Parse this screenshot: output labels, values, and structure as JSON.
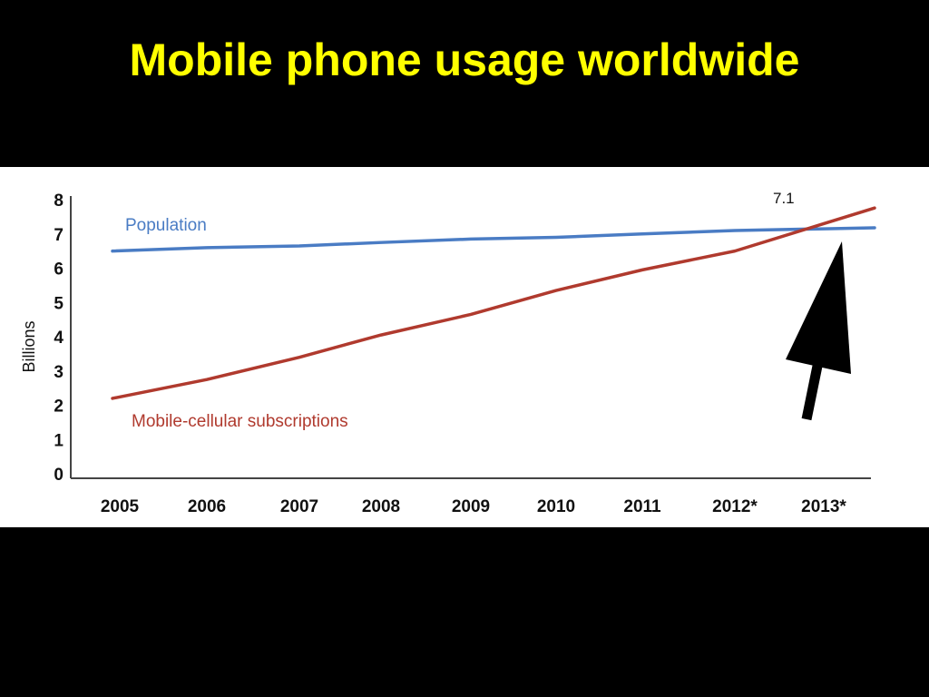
{
  "slide": {
    "title": "Mobile phone usage worldwide"
  },
  "chart_data": {
    "type": "line",
    "title": "",
    "xlabel": "",
    "ylabel": "Billions",
    "categories": [
      "2005",
      "2006",
      "2007",
      "2008",
      "2009",
      "2010",
      "2011",
      "2012*",
      "2013*"
    ],
    "yticks": [
      "0",
      "1",
      "2",
      "3",
      "4",
      "5",
      "6",
      "7",
      "8"
    ],
    "ylim": [
      0,
      8
    ],
    "grid": false,
    "series": [
      {
        "name": "Population",
        "color": "#4a7cc4",
        "values": [
          6.5,
          6.6,
          6.65,
          6.75,
          6.85,
          6.9,
          7.0,
          7.1,
          7.15
        ]
      },
      {
        "name": "Mobile-cellular subscriptions",
        "color": "#b03a2e",
        "values": [
          2.2,
          2.75,
          3.4,
          4.05,
          4.65,
          5.35,
          5.95,
          6.5,
          7.3
        ]
      }
    ],
    "annotations": [
      {
        "text": "7.1"
      }
    ],
    "arrow": {
      "color": "#000000",
      "points_to": "crossover near 2013*"
    }
  }
}
